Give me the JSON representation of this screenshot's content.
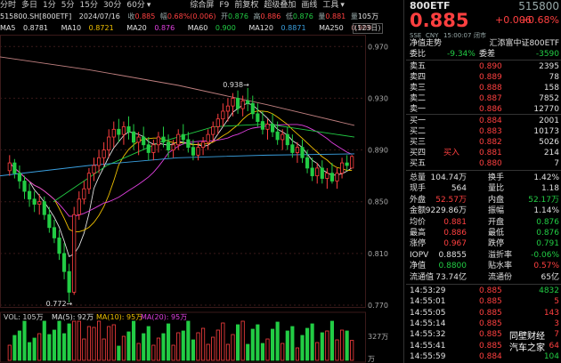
{
  "toolbar": {
    "left": [
      "分时",
      "多日",
      "1分",
      "5分",
      "15分",
      "30分",
      "60分"
    ],
    "right": [
      "综合屏",
      "F9",
      "前复权",
      "超级叠加",
      "画线",
      "工具"
    ]
  },
  "info": {
    "code": "515800.SH[800ETF]",
    "date": "2024/07/16",
    "close_label": "收",
    "close": "0.885",
    "chg_label": "幅",
    "chg": "0.68%(0.006)",
    "open_label": "开",
    "open": "0.876",
    "high_label": "高",
    "high": "0.886",
    "low_label": "低",
    "low": "0.876",
    "amp_label": "量",
    "amp": "0.881",
    "vol_label": "量",
    "vol": "105万"
  },
  "ma": [
    {
      "label": "MA5",
      "value": "0.8781",
      "color": "#e0e0e0"
    },
    {
      "label": "MA10",
      "value": "0.8721",
      "color": "#f0c000"
    },
    {
      "label": "MA20",
      "value": "0.876",
      "color": "#e040e0"
    },
    {
      "label": "MA60",
      "value": "0.900",
      "color": "#22cc44"
    },
    {
      "label": "MA120",
      "value": "0.8871",
      "color": "#3aa0e0"
    },
    {
      "label": "MA250",
      "value": "0.909",
      "color": "#c08080"
    }
  ],
  "price_tag": "(123日)",
  "chart_data": {
    "type": "candlestick",
    "y_ticks": [
      "0.970",
      "0.930",
      "0.890",
      "0.850",
      "0.810",
      "0.770"
    ],
    "y_range": [
      0.77,
      0.975
    ],
    "annotations": [
      {
        "text": "0.938",
        "index": 48
      },
      {
        "text": "0.772",
        "index": 12
      }
    ],
    "candles": [
      [
        0.874,
        0.886,
        0.87,
        0.88
      ],
      [
        0.88,
        0.883,
        0.868,
        0.872
      ],
      [
        0.872,
        0.878,
        0.86,
        0.866
      ],
      [
        0.866,
        0.87,
        0.852,
        0.858
      ],
      [
        0.858,
        0.864,
        0.846,
        0.852
      ],
      [
        0.852,
        0.858,
        0.842,
        0.848
      ],
      [
        0.848,
        0.856,
        0.84,
        0.85
      ],
      [
        0.85,
        0.854,
        0.836,
        0.84
      ],
      [
        0.84,
        0.846,
        0.826,
        0.83
      ],
      [
        0.83,
        0.836,
        0.818,
        0.822
      ],
      [
        0.822,
        0.828,
        0.805,
        0.81
      ],
      [
        0.81,
        0.818,
        0.79,
        0.796
      ],
      [
        0.796,
        0.802,
        0.772,
        0.78
      ],
      [
        0.78,
        0.846,
        0.778,
        0.84
      ],
      [
        0.84,
        0.858,
        0.836,
        0.852
      ],
      [
        0.852,
        0.866,
        0.848,
        0.86
      ],
      [
        0.86,
        0.876,
        0.856,
        0.872
      ],
      [
        0.872,
        0.884,
        0.866,
        0.878
      ],
      [
        0.878,
        0.89,
        0.872,
        0.884
      ],
      [
        0.884,
        0.896,
        0.878,
        0.89
      ],
      [
        0.89,
        0.906,
        0.884,
        0.9
      ],
      [
        0.9,
        0.912,
        0.892,
        0.906
      ],
      [
        0.906,
        0.914,
        0.896,
        0.902
      ],
      [
        0.902,
        0.912,
        0.894,
        0.908
      ],
      [
        0.908,
        0.916,
        0.898,
        0.904
      ],
      [
        0.904,
        0.91,
        0.89,
        0.896
      ],
      [
        0.896,
        0.904,
        0.886,
        0.9
      ],
      [
        0.9,
        0.908,
        0.89,
        0.894
      ],
      [
        0.894,
        0.9,
        0.882,
        0.888
      ],
      [
        0.888,
        0.898,
        0.882,
        0.894
      ],
      [
        0.894,
        0.904,
        0.888,
        0.9
      ],
      [
        0.9,
        0.908,
        0.892,
        0.896
      ],
      [
        0.896,
        0.902,
        0.884,
        0.89
      ],
      [
        0.89,
        0.898,
        0.884,
        0.894
      ],
      [
        0.894,
        0.906,
        0.89,
        0.902
      ],
      [
        0.902,
        0.91,
        0.894,
        0.898
      ],
      [
        0.898,
        0.904,
        0.888,
        0.892
      ],
      [
        0.892,
        0.898,
        0.882,
        0.886
      ],
      [
        0.886,
        0.896,
        0.882,
        0.892
      ],
      [
        0.892,
        0.9,
        0.886,
        0.896
      ],
      [
        0.896,
        0.906,
        0.89,
        0.902
      ],
      [
        0.902,
        0.912,
        0.896,
        0.908
      ],
      [
        0.908,
        0.918,
        0.902,
        0.914
      ],
      [
        0.914,
        0.926,
        0.908,
        0.92
      ],
      [
        0.92,
        0.93,
        0.912,
        0.924
      ],
      [
        0.924,
        0.934,
        0.916,
        0.93
      ],
      [
        0.93,
        0.936,
        0.918,
        0.922
      ],
      [
        0.922,
        0.932,
        0.916,
        0.928
      ],
      [
        0.928,
        0.938,
        0.92,
        0.926
      ],
      [
        0.926,
        0.932,
        0.914,
        0.918
      ],
      [
        0.918,
        0.926,
        0.908,
        0.912
      ],
      [
        0.912,
        0.92,
        0.902,
        0.906
      ],
      [
        0.906,
        0.914,
        0.898,
        0.91
      ],
      [
        0.91,
        0.918,
        0.9,
        0.904
      ],
      [
        0.904,
        0.912,
        0.894,
        0.898
      ],
      [
        0.898,
        0.906,
        0.89,
        0.902
      ],
      [
        0.902,
        0.908,
        0.89,
        0.894
      ],
      [
        0.894,
        0.902,
        0.884,
        0.888
      ],
      [
        0.888,
        0.896,
        0.88,
        0.892
      ],
      [
        0.892,
        0.898,
        0.88,
        0.884
      ],
      [
        0.884,
        0.89,
        0.872,
        0.876
      ],
      [
        0.876,
        0.884,
        0.866,
        0.87
      ],
      [
        0.87,
        0.88,
        0.864,
        0.876
      ],
      [
        0.876,
        0.882,
        0.864,
        0.868
      ],
      [
        0.868,
        0.876,
        0.86,
        0.872
      ],
      [
        0.872,
        0.88,
        0.864,
        0.866
      ],
      [
        0.866,
        0.876,
        0.86,
        0.872
      ],
      [
        0.872,
        0.884,
        0.868,
        0.88
      ],
      [
        0.88,
        0.886,
        0.874,
        0.878
      ],
      [
        0.876,
        0.886,
        0.876,
        0.885
      ]
    ],
    "volume_label": "VOL: 105万",
    "volume_ma": [
      {
        "label": "MA(5)",
        "value": "92万",
        "color": "#e0e0e0"
      },
      {
        "label": "MA(10)",
        "value": "95万",
        "color": "#f0c000"
      },
      {
        "label": "MA(20)",
        "value": "95万",
        "color": "#e040e0"
      }
    ],
    "volume_tick": "327万",
    "volume_unit": "万"
  },
  "panel": {
    "name": "800ETF",
    "code": "515800",
    "price": "0.885",
    "change": "+0.006",
    "pct": "+0.68%",
    "meta": [
      "SSE",
      "CNY",
      "15:00:07",
      "闭市"
    ],
    "net_label": "净值走势",
    "fund_name": "汇添富中证800ETF",
    "weibi_label": "委比",
    "weibi": "-9.34%",
    "weicha_label": "委差",
    "weicha": "-3590",
    "asks": [
      {
        "label": "卖五",
        "price": "0.890",
        "vol": "2395"
      },
      {
        "label": "卖四",
        "price": "0.889",
        "vol": "78"
      },
      {
        "label": "卖三",
        "price": "0.888",
        "vol": "158"
      },
      {
        "label": "卖二",
        "price": "0.887",
        "vol": "7852"
      },
      {
        "label": "卖一",
        "price": "0.886",
        "vol": "12770"
      }
    ],
    "bids": [
      {
        "label": "买一",
        "price": "0.884",
        "vol": "2001"
      },
      {
        "label": "买二",
        "price": "0.883",
        "vol": "10173"
      },
      {
        "label": "买三",
        "price": "0.882",
        "vol": "5026"
      },
      {
        "label": "买四",
        "price": "0.881",
        "vol": "214",
        "tag": "买入"
      },
      {
        "label": "买五",
        "price": "0.880",
        "vol": "7"
      }
    ],
    "stats": [
      {
        "l1": "总量",
        "v1": "104.74万",
        "c1": "wh",
        "l2": "换手",
        "v2": "1.42%",
        "c2": "wh"
      },
      {
        "l1": "现手",
        "v1": "564",
        "c1": "wh",
        "l2": "量比",
        "v2": "1.18",
        "c2": "wh"
      },
      {
        "l1": "外盘",
        "v1": "52.57万",
        "c1": "up",
        "l2": "内盘",
        "v2": "52.17万",
        "c2": "dn"
      },
      {
        "l1": "金额",
        "v1": "9229.86万",
        "c1": "wh",
        "l2": "振幅",
        "v2": "1.14%",
        "c2": "wh"
      },
      {
        "l1": "均价",
        "v1": "0.881",
        "c1": "up",
        "l2": "开盘",
        "v2": "0.876",
        "c2": "dn"
      },
      {
        "l1": "最高",
        "v1": "0.886",
        "c1": "up",
        "l2": "最低",
        "v2": "0.876",
        "c2": "dn"
      },
      {
        "l1": "涨停",
        "v1": "0.967",
        "c1": "up",
        "l2": "跌停",
        "v2": "0.791",
        "c2": "dn"
      },
      {
        "l1": "IOPV",
        "v1": "0.8855",
        "c1": "wh",
        "l2": "溢折率",
        "v2": "-0.06%",
        "c2": "dn"
      },
      {
        "l1": "净值",
        "v1": "0.8800",
        "c1": "dn",
        "l2": "贴水率",
        "v2": "0.57%",
        "c2": "up"
      },
      {
        "l1": "流通值",
        "v1": "73.74亿",
        "c1": "wh",
        "l2": "流通份",
        "v2": "65亿",
        "c2": "wh"
      }
    ],
    "ticks": [
      {
        "time": "14:53:29",
        "price": "0.885",
        "vol": "4832",
        "c": "dn"
      },
      {
        "time": "14:55:01",
        "price": "0.885",
        "vol": "5",
        "c": "up"
      },
      {
        "time": "14:55:05",
        "price": "0.885",
        "vol": "143",
        "c": "up"
      },
      {
        "time": "14:55:14",
        "price": "0.885",
        "vol": "3",
        "c": "up"
      },
      {
        "time": "14:55:32",
        "price": "0.885",
        "vol": "7",
        "c": "up"
      },
      {
        "time": "14:55:41",
        "price": "0.885",
        "vol": "64",
        "c": "up"
      },
      {
        "time": "14:55:59",
        "price": "0.884",
        "vol": "104",
        "c": "dn"
      }
    ]
  },
  "watermark": {
    "line1": "同壁财经",
    "line2": "汽车之家"
  }
}
